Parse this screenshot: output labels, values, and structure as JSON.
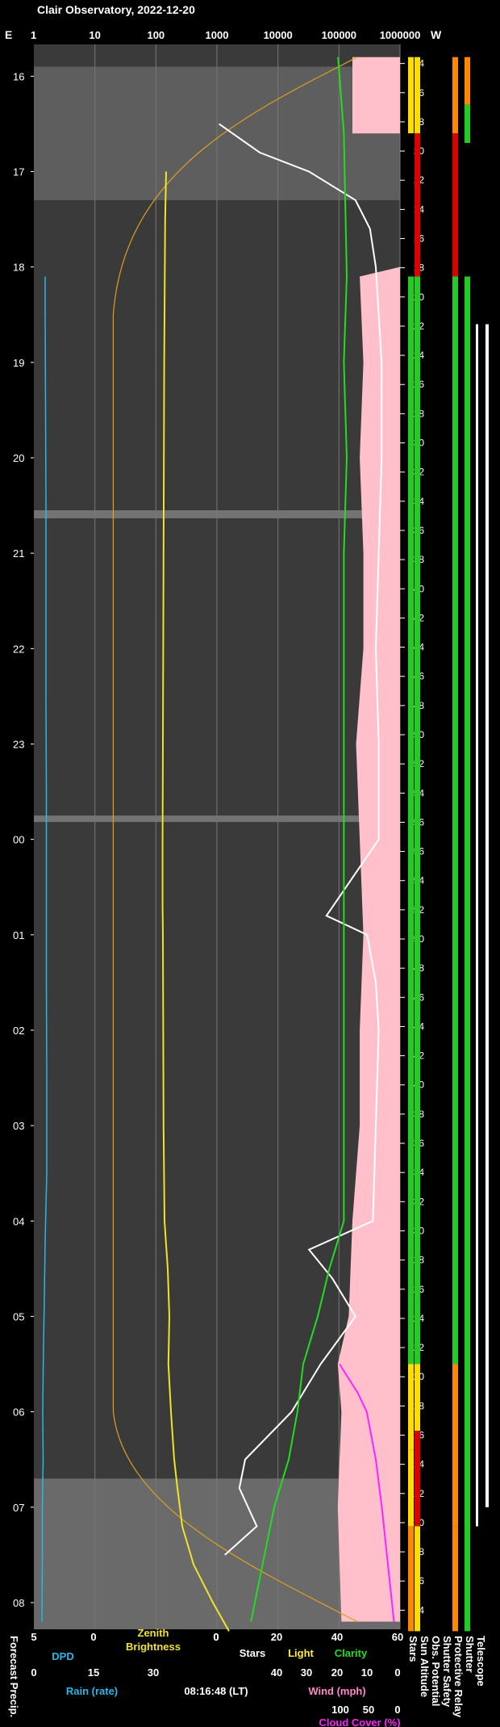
{
  "header": {
    "title": "Clair Observatory, 2022-12-20",
    "e_label": "E",
    "w_label": "W"
  },
  "colors": {
    "background": "#000000",
    "sky_image": "#3a3a3a",
    "dpd": "#29b6e8",
    "zenith_brightness": "#f2e22a",
    "sun_altitude_curve": "#e0a020",
    "stars": "#ffffff",
    "light": "#ffee33",
    "clarity": "#22dd22",
    "cloud_cover": "#ff22ff",
    "wind_fill": "#ffc0cb",
    "status_green": "#22cc22",
    "status_yellow": "#ffdd00",
    "status_red": "#dd0000",
    "status_orange": "#ff8800"
  },
  "chart_data": {
    "type": "line",
    "title": "Clair Observatory, 2022-12-20",
    "timestamp": "08:16:48 (LT)",
    "top_axis": {
      "scale": "log",
      "ticks": [
        "1",
        "10",
        "100",
        "1000",
        "10000",
        "100000",
        "1000000"
      ]
    },
    "time_axis": {
      "ticks": [
        "16",
        "17",
        "18",
        "19",
        "20",
        "21",
        "22",
        "23",
        "00",
        "01",
        "02",
        "03",
        "04",
        "05",
        "06",
        "07",
        "08"
      ],
      "range": [
        "15:40",
        "08:17"
      ]
    },
    "sun_altitude_axis": {
      "ticks": [
        "-4",
        "-6",
        "-8",
        "-10",
        "-12",
        "-14",
        "-16",
        "-18",
        "-20",
        "-22",
        "-24",
        "-26",
        "-28",
        "-30",
        "-32",
        "-34",
        "-36",
        "-38",
        "-40",
        "-42",
        "-44",
        "-46",
        "-48",
        "-50",
        "-52",
        "-54",
        "-56",
        "-56",
        "-54",
        "-52",
        "-50",
        "-48",
        "-46",
        "-44",
        "-42",
        "-40",
        "-38",
        "-36",
        "-34",
        "-32",
        "-30",
        "-28",
        "-26",
        "-24",
        "-22",
        "-20",
        "-18",
        "-16",
        "-14",
        "-12",
        "-10",
        "-8",
        "-6",
        "-4"
      ]
    },
    "bottom_axes": {
      "dpd": {
        "ticks": [
          "5",
          "0"
        ],
        "label": "DPD"
      },
      "zenith_brightness": {
        "ticks": [
          "0"
        ],
        "label": "Zenith Brightness"
      },
      "stars_row": {
        "ticks": [
          "0",
          "20",
          "40",
          "60"
        ],
        "labels": [
          "Stars",
          "Light",
          "Clarity"
        ]
      },
      "rain": {
        "ticks": [
          "0",
          "15",
          "30"
        ],
        "label": "Rain (rate)"
      },
      "wind": {
        "ticks": [
          "40",
          "30",
          "20",
          "10",
          "0"
        ],
        "label": "Wind (mph)"
      },
      "cloud": {
        "ticks": [
          "100",
          "50",
          "0"
        ],
        "label": "Cloud Cover (%)"
      }
    },
    "status_columns": [
      "Stars",
      "Sun Altitude",
      "Forecast Precip.",
      "Obs. Potential",
      "Shutter Safety",
      "Protective Relay",
      "Shutter",
      "Telescope"
    ],
    "series": [
      {
        "name": "DPD",
        "x": [
          15.8,
          16.5,
          17.5,
          18.1,
          18.5,
          19.5,
          20.5,
          21.5,
          22.5,
          23.5,
          24.5,
          25.5,
          26.5,
          27.5,
          28.2,
          28.8,
          29.3,
          29.6,
          30.0,
          30.5,
          31.0,
          31.5,
          32.2
        ],
        "y": [
          99,
          99,
          99,
          3.2,
          3.2,
          3.1,
          3.0,
          3.0,
          3.0,
          2.9,
          2.9,
          2.9,
          2.8,
          2.8,
          3.2,
          3.4,
          3.6,
          3.7,
          3.8,
          3.7,
          3.9,
          3.9,
          4.0
        ]
      },
      {
        "name": "Zenith Brightness",
        "x": [
          17.0,
          17.5,
          18.0,
          19.0,
          20.0,
          21.0,
          22.0,
          23.0,
          24.0,
          24.7,
          25.0,
          26.0,
          27.0,
          28.0,
          28.5,
          29.0,
          29.5,
          30.0,
          30.5,
          30.8,
          31.2,
          31.6,
          32.0,
          32.3
        ],
        "y": [
          3.5,
          3.2,
          3.1,
          2.9,
          2.8,
          2.7,
          2.6,
          2.5,
          2.4,
          2.4,
          2.5,
          2.6,
          2.7,
          3.0,
          4.0,
          4.5,
          4.2,
          5.0,
          6.0,
          7.0,
          8.5,
          12,
          18,
          23
        ]
      },
      {
        "name": "Stars",
        "x": [
          16.5,
          16.8,
          17.0,
          17.3,
          17.6,
          18.0,
          18.5,
          19.0,
          20.0,
          21.0,
          22.0,
          23.0,
          24.0,
          24.8,
          25.0,
          25.5,
          26.0,
          27.0,
          28.0,
          28.3,
          28.6,
          29.0,
          29.5,
          30.0,
          30.5,
          30.8,
          31.2,
          31.5
        ],
        "y": [
          1,
          15,
          32,
          48,
          53,
          55,
          56,
          57,
          57,
          56,
          55,
          56,
          56,
          38,
          52,
          55,
          56,
          55,
          54,
          32,
          40,
          48,
          36,
          26,
          10,
          8,
          14,
          3
        ]
      },
      {
        "name": "Clarity",
        "x": [
          15.8,
          16.2,
          16.6,
          18.1,
          19.0,
          20.0,
          21.0,
          22.0,
          23.0,
          24.0,
          25.0,
          26.0,
          27.0,
          28.0,
          28.5,
          29.0,
          29.5,
          30.0,
          30.5,
          31.0,
          31.3,
          31.6,
          31.9,
          32.2
        ],
        "y": [
          42,
          43,
          44,
          45,
          44,
          45,
          44,
          44,
          44,
          44,
          44,
          44,
          44,
          44,
          39,
          35,
          30,
          28,
          25,
          20,
          18,
          16,
          14,
          12
        ]
      },
      {
        "name": "Cloud Cover",
        "x": [
          29.5,
          29.8,
          30.0,
          30.5,
          31.0,
          31.3,
          31.6,
          31.9,
          32.2
        ],
        "y": [
          100,
          70,
          55,
          40,
          30,
          25,
          20,
          15,
          10
        ]
      }
    ],
    "status": {
      "stars": [
        {
          "from": 15.8,
          "to": 16.6,
          "state": "yellow"
        },
        {
          "from": 16.6,
          "to": 18.1,
          "state": "black"
        },
        {
          "from": 18.1,
          "to": 29.5,
          "state": "green"
        },
        {
          "from": 29.5,
          "to": 30.4,
          "state": "yellow"
        },
        {
          "from": 30.4,
          "to": 31.2,
          "state": "yellow"
        },
        {
          "from": 31.2,
          "to": 32.3,
          "state": "orange"
        }
      ],
      "sun_altitude": [
        {
          "from": 15.8,
          "to": 16.6,
          "state": "yellow"
        },
        {
          "from": 16.6,
          "to": 18.1,
          "state": "red"
        },
        {
          "from": 18.1,
          "to": 29.5,
          "state": "green"
        },
        {
          "from": 29.5,
          "to": 30.2,
          "state": "yellow"
        },
        {
          "from": 30.2,
          "to": 31.2,
          "state": "red"
        },
        {
          "from": 31.2,
          "to": 32.3,
          "state": "yellow"
        }
      ],
      "obs_potential": [
        {
          "from": 15.8,
          "to": 16.6,
          "state": "orange"
        },
        {
          "from": 16.6,
          "to": 18.1,
          "state": "red"
        },
        {
          "from": 18.1,
          "to": 29.5,
          "state": "green"
        },
        {
          "from": 29.5,
          "to": 31.2,
          "state": "orange"
        },
        {
          "from": 31.2,
          "to": 32.3,
          "state": "orange"
        }
      ],
      "shutter_safety": [
        {
          "from": 15.8,
          "to": 16.3,
          "state": "orange"
        },
        {
          "from": 16.3,
          "to": 16.7,
          "state": "green"
        },
        {
          "from": 16.7,
          "to": 18.1,
          "state": "black"
        },
        {
          "from": 18.1,
          "to": 32.3,
          "state": "green"
        }
      ]
    }
  },
  "footer": {
    "timestamp": "08:16:48 (LT)"
  }
}
